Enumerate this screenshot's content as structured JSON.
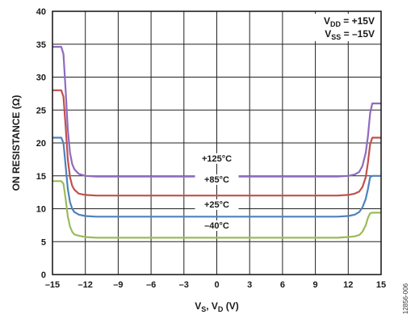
{
  "chart_data": {
    "type": "line",
    "x_label": {
      "main": "V",
      "parts": [
        {
          "t": "V"
        },
        {
          "t": "S",
          "sub": true
        },
        {
          "t": ", V"
        },
        {
          "t": "D",
          "sub": true
        },
        {
          "t": " (V)"
        }
      ]
    },
    "ylabel": "ON RESISTANCE (Ω)",
    "xlim": [
      -15,
      15
    ],
    "ylim": [
      0,
      40
    ],
    "x_ticks": [
      -15,
      -12,
      -9,
      -6,
      -3,
      0,
      3,
      6,
      9,
      12,
      15
    ],
    "x_tick_labels": [
      "–15",
      "–12",
      "–9",
      "–6",
      "–3",
      "0",
      "3",
      "6",
      "9",
      "12",
      "15"
    ],
    "y_ticks": [
      0,
      5,
      10,
      15,
      20,
      25,
      30,
      35,
      40
    ],
    "grid": true,
    "conditions": [
      {
        "parts": [
          {
            "t": "V"
          },
          {
            "t": "DD",
            "sub": true
          },
          {
            "t": " = +15V"
          }
        ]
      },
      {
        "parts": [
          {
            "t": "V"
          },
          {
            "t": "SS",
            "sub": true
          },
          {
            "t": " = –15V"
          }
        ]
      }
    ],
    "figure_id": "12856-006",
    "series": [
      {
        "name": "+125°C",
        "color": "#8e6bbf",
        "x": [
          -15,
          -14.2,
          -14.0,
          -13.8,
          -13.6,
          -13.4,
          -13.2,
          -13.0,
          -12.6,
          -12.0,
          -11.0,
          0,
          11.0,
          12.0,
          12.6,
          13.0,
          13.3,
          13.6,
          13.8,
          14.0,
          14.2,
          15
        ],
        "y": [
          34.6,
          34.6,
          33.5,
          28.0,
          22.0,
          18.5,
          16.8,
          16.0,
          15.3,
          15.0,
          14.9,
          14.9,
          14.9,
          15.0,
          15.2,
          15.6,
          16.5,
          18.5,
          21.0,
          24.5,
          26.0,
          26.0
        ]
      },
      {
        "name": "+85°C",
        "color": "#c0504d",
        "x": [
          -15,
          -14.2,
          -14.0,
          -13.8,
          -13.6,
          -13.4,
          -13.2,
          -13.0,
          -12.6,
          -12.0,
          -11.0,
          0,
          11.0,
          12.0,
          12.6,
          13.0,
          13.3,
          13.6,
          13.8,
          14.0,
          14.2,
          15
        ],
        "y": [
          28.0,
          28.0,
          27.0,
          22.5,
          17.5,
          14.8,
          13.5,
          12.9,
          12.3,
          12.1,
          12.0,
          12.0,
          12.0,
          12.1,
          12.3,
          12.6,
          13.3,
          14.8,
          17.0,
          19.8,
          20.8,
          20.8
        ]
      },
      {
        "name": "+25°C",
        "color": "#4f81bd",
        "x": [
          -15,
          -14.2,
          -14.0,
          -13.8,
          -13.6,
          -13.4,
          -13.2,
          -13.0,
          -12.6,
          -12.0,
          -11.0,
          0,
          11.0,
          12.0,
          12.6,
          13.0,
          13.3,
          13.6,
          13.8,
          14.0,
          14.2,
          15
        ],
        "y": [
          20.8,
          20.8,
          20.0,
          16.5,
          13.0,
          11.0,
          10.0,
          9.5,
          9.1,
          8.9,
          8.8,
          8.8,
          8.8,
          8.9,
          9.1,
          9.5,
          10.2,
          11.5,
          13.0,
          14.8,
          15.0,
          15.0
        ]
      },
      {
        "name": "–40°C",
        "color": "#9bbb59",
        "x": [
          -15,
          -14.2,
          -14.0,
          -13.8,
          -13.6,
          -13.4,
          -13.2,
          -13.0,
          -12.6,
          -12.0,
          -11.0,
          0,
          11.0,
          12.0,
          12.6,
          13.0,
          13.3,
          13.6,
          13.8,
          14.0,
          14.2,
          15
        ],
        "y": [
          14.2,
          14.2,
          13.8,
          11.5,
          8.8,
          7.3,
          6.5,
          6.1,
          5.9,
          5.7,
          5.6,
          5.6,
          5.6,
          5.7,
          5.8,
          6.0,
          6.5,
          7.5,
          8.6,
          9.3,
          9.4,
          9.4
        ]
      }
    ],
    "annotations": [
      "+125°C",
      "+85°C",
      "+25°C",
      "–40°C"
    ]
  }
}
